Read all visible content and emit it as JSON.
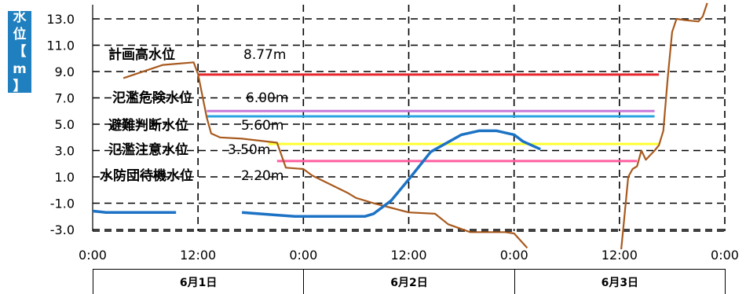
{
  "y_axis_label": [
    "水",
    "位",
    "【",
    "m",
    "】"
  ],
  "chart_data": {
    "type": "line",
    "ylim": [
      -3.0,
      14.0
    ],
    "yticks": [
      "13.0",
      "11.0",
      "9.0",
      "7.0",
      "5.0",
      "3.0",
      "1.0",
      "-1.0",
      "-3.0"
    ],
    "ytick_values": [
      13,
      11,
      9,
      7,
      5,
      3,
      1,
      -1,
      -3
    ],
    "xlim_hours": [
      0,
      72
    ],
    "xtick_labels": [
      "0:00",
      "12:00",
      "0:00",
      "12:00",
      "0:00",
      "12:00",
      "0:00"
    ],
    "xtick_hours": [
      0,
      12,
      24,
      36,
      48,
      60,
      72
    ],
    "dates": [
      "6月1日",
      "6月2日",
      "6月3日"
    ],
    "grid": true,
    "thresholds": [
      {
        "name": "計画高水位",
        "label": "8.77m",
        "value": 8.77,
        "color": "#e8262c",
        "x_from_hours": 12,
        "x_to_hours": 64.5
      },
      {
        "name": "氾濫危険水位",
        "label": "6.00m",
        "value": 6.0,
        "color": "#c878d8",
        "x_from_hours": 13,
        "x_to_hours": 64
      },
      {
        "name": "避難判断水位",
        "label": "5.60m",
        "value": 5.6,
        "color": "#29a3e0",
        "x_from_hours": 13,
        "x_to_hours": 64
      },
      {
        "name": "氾濫注意水位",
        "label": "3.50m",
        "value": 3.5,
        "color": "#ffff33",
        "x_from_hours": 20,
        "x_to_hours": 64.5
      },
      {
        "name": "水防団待機水位",
        "label": "2.20m",
        "value": 2.2,
        "color": "#ff5fa0",
        "x_from_hours": 21,
        "x_to_hours": 62
      }
    ],
    "series": [
      {
        "color": "#a85a1e",
        "segments": [
          [
            [
              3.5,
              8.5
            ],
            [
              8,
              9.5
            ],
            [
              11.5,
              9.7
            ],
            [
              12,
              8.8
            ],
            [
              13,
              5.5
            ],
            [
              13.5,
              4.3
            ],
            [
              14.5,
              4.0
            ],
            [
              17,
              3.9
            ],
            [
              21,
              3.6
            ],
            [
              22,
              1.7
            ],
            [
              24,
              1.6
            ],
            [
              25,
              1.1
            ],
            [
              29,
              -0.2
            ],
            [
              30,
              -0.6
            ],
            [
              32,
              -1.0
            ],
            [
              36,
              -1.7
            ],
            [
              39,
              -1.8
            ],
            [
              40.5,
              -2.6
            ],
            [
              43,
              -3.2
            ],
            [
              47,
              -3.2
            ],
            [
              48,
              -3.3
            ],
            [
              49.5,
              -4.4
            ]
          ],
          [
            [
              60.2,
              -4.5
            ],
            [
              60.5,
              -2.5
            ],
            [
              61,
              1.0
            ],
            [
              61.5,
              1.6
            ],
            [
              62,
              1.8
            ],
            [
              62.5,
              3.0
            ],
            [
              63,
              2.3
            ],
            [
              64,
              3.0
            ],
            [
              64.5,
              3.4
            ],
            [
              65,
              4.5
            ],
            [
              65.5,
              8.5
            ],
            [
              66,
              12.0
            ],
            [
              66.5,
              13.0
            ],
            [
              67.5,
              12.9
            ],
            [
              69,
              12.8
            ],
            [
              69.5,
              13.2
            ],
            [
              70,
              14.2
            ]
          ]
        ]
      },
      {
        "color": "#1c72c4",
        "segments": [
          [
            [
              0,
              -1.6
            ],
            [
              1.5,
              -1.7
            ],
            [
              9.5,
              -1.7
            ]
          ],
          [
            [
              17,
              -1.7
            ],
            [
              21,
              -1.9
            ],
            [
              23,
              -2.0
            ],
            [
              31,
              -2.0
            ],
            [
              32,
              -1.8
            ],
            [
              34,
              -0.8
            ],
            [
              36,
              0.8
            ],
            [
              38.5,
              2.9
            ],
            [
              42,
              4.2
            ],
            [
              44,
              4.5
            ],
            [
              46,
              4.5
            ],
            [
              48,
              4.2
            ],
            [
              49,
              3.7
            ],
            [
              51,
              3.1
            ]
          ]
        ]
      }
    ]
  }
}
